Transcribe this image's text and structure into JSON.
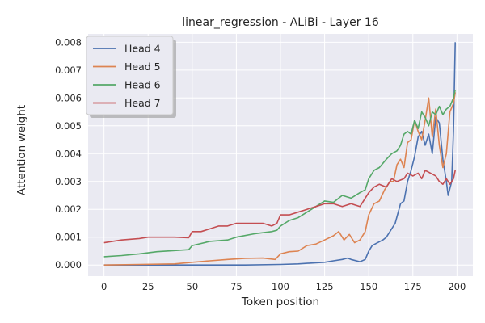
{
  "chart_data": {
    "type": "line",
    "title": "linear_regression - ALiBi - Layer 16",
    "xlabel": "Token position",
    "ylabel": "Attention weight",
    "xlim": [
      -9,
      209
    ],
    "ylim": [
      -0.0004,
      0.0083
    ],
    "xticks": [
      0,
      25,
      50,
      75,
      100,
      125,
      150,
      175,
      200
    ],
    "xtick_labels": [
      "0",
      "25",
      "50",
      "75",
      "100",
      "125",
      "150",
      "175",
      "200"
    ],
    "yticks": [
      0,
      0.001,
      0.002,
      0.003,
      0.004,
      0.005,
      0.006,
      0.007,
      0.008
    ],
    "ytick_labels": [
      "0.000",
      "0.001",
      "0.002",
      "0.003",
      "0.004",
      "0.005",
      "0.006",
      "0.007",
      "0.008"
    ],
    "grid": true,
    "legend_position": "top-left",
    "background": "#eaeaf2",
    "series": [
      {
        "name": "Head 4",
        "color": "#4c72b0",
        "points": [
          [
            0,
            0.0
          ],
          [
            20,
            0.0
          ],
          [
            40,
            0.0
          ],
          [
            60,
            0.0
          ],
          [
            80,
            0.0
          ],
          [
            100,
            2e-05
          ],
          [
            110,
            4e-05
          ],
          [
            120,
            8e-05
          ],
          [
            125,
            0.0001
          ],
          [
            130,
            0.00015
          ],
          [
            135,
            0.0002
          ],
          [
            138,
            0.00025
          ],
          [
            140,
            0.0002
          ],
          [
            145,
            0.00012
          ],
          [
            148,
            0.0002
          ],
          [
            150,
            0.0005
          ],
          [
            152,
            0.0007
          ],
          [
            155,
            0.0008
          ],
          [
            158,
            0.0009
          ],
          [
            160,
            0.001
          ],
          [
            162,
            0.0012
          ],
          [
            165,
            0.0015
          ],
          [
            168,
            0.0022
          ],
          [
            170,
            0.0023
          ],
          [
            172,
            0.003
          ],
          [
            174,
            0.0034
          ],
          [
            176,
            0.0039
          ],
          [
            178,
            0.0046
          ],
          [
            180,
            0.0048
          ],
          [
            182,
            0.0043
          ],
          [
            184,
            0.0047
          ],
          [
            186,
            0.004
          ],
          [
            188,
            0.0053
          ],
          [
            190,
            0.0051
          ],
          [
            192,
            0.0038
          ],
          [
            194,
            0.003
          ],
          [
            195,
            0.0025
          ],
          [
            197,
            0.003
          ],
          [
            198,
            0.0048
          ],
          [
            199,
            0.008
          ]
        ]
      },
      {
        "name": "Head 5",
        "color": "#dd8452",
        "points": [
          [
            0,
            0.0
          ],
          [
            20,
            2e-05
          ],
          [
            40,
            4e-05
          ],
          [
            50,
            0.0001
          ],
          [
            60,
            0.00015
          ],
          [
            70,
            0.0002
          ],
          [
            80,
            0.00024
          ],
          [
            90,
            0.00025
          ],
          [
            97,
            0.0002
          ],
          [
            100,
            0.0004
          ],
          [
            105,
            0.00048
          ],
          [
            110,
            0.0005
          ],
          [
            115,
            0.0007
          ],
          [
            120,
            0.00075
          ],
          [
            125,
            0.0009
          ],
          [
            130,
            0.00105
          ],
          [
            133,
            0.0012
          ],
          [
            136,
            0.0009
          ],
          [
            139,
            0.0011
          ],
          [
            142,
            0.0008
          ],
          [
            145,
            0.0009
          ],
          [
            148,
            0.0012
          ],
          [
            150,
            0.0018
          ],
          [
            153,
            0.0022
          ],
          [
            156,
            0.0023
          ],
          [
            159,
            0.0027
          ],
          [
            162,
            0.003
          ],
          [
            164,
            0.003
          ],
          [
            166,
            0.0036
          ],
          [
            168,
            0.0038
          ],
          [
            170,
            0.0035
          ],
          [
            172,
            0.0044
          ],
          [
            174,
            0.0045
          ],
          [
            176,
            0.0052
          ],
          [
            178,
            0.0048
          ],
          [
            180,
            0.0045
          ],
          [
            182,
            0.0052
          ],
          [
            184,
            0.006
          ],
          [
            186,
            0.0046
          ],
          [
            188,
            0.0056
          ],
          [
            190,
            0.0043
          ],
          [
            192,
            0.0035
          ],
          [
            194,
            0.004
          ],
          [
            196,
            0.0055
          ],
          [
            198,
            0.0058
          ],
          [
            199,
            0.0062
          ]
        ]
      },
      {
        "name": "Head 6",
        "color": "#55a868",
        "points": [
          [
            0,
            0.0003
          ],
          [
            10,
            0.00034
          ],
          [
            20,
            0.0004
          ],
          [
            30,
            0.00048
          ],
          [
            40,
            0.00052
          ],
          [
            48,
            0.00055
          ],
          [
            50,
            0.0007
          ],
          [
            60,
            0.00085
          ],
          [
            70,
            0.0009
          ],
          [
            75,
            0.001
          ],
          [
            85,
            0.00112
          ],
          [
            95,
            0.0012
          ],
          [
            98,
            0.00125
          ],
          [
            100,
            0.0014
          ],
          [
            105,
            0.0016
          ],
          [
            110,
            0.0017
          ],
          [
            115,
            0.0019
          ],
          [
            120,
            0.0021
          ],
          [
            125,
            0.0023
          ],
          [
            130,
            0.00225
          ],
          [
            135,
            0.0025
          ],
          [
            140,
            0.0024
          ],
          [
            145,
            0.0026
          ],
          [
            148,
            0.0027
          ],
          [
            150,
            0.0031
          ],
          [
            153,
            0.0034
          ],
          [
            156,
            0.0035
          ],
          [
            160,
            0.0038
          ],
          [
            163,
            0.004
          ],
          [
            166,
            0.0041
          ],
          [
            168,
            0.0043
          ],
          [
            170,
            0.0047
          ],
          [
            172,
            0.0048
          ],
          [
            174,
            0.0047
          ],
          [
            176,
            0.0052
          ],
          [
            178,
            0.0049
          ],
          [
            180,
            0.0055
          ],
          [
            182,
            0.0053
          ],
          [
            184,
            0.005
          ],
          [
            186,
            0.0055
          ],
          [
            188,
            0.0054
          ],
          [
            190,
            0.0057
          ],
          [
            192,
            0.0054
          ],
          [
            194,
            0.0056
          ],
          [
            196,
            0.0057
          ],
          [
            198,
            0.006
          ],
          [
            199,
            0.0063
          ]
        ]
      },
      {
        "name": "Head 7",
        "color": "#c44e52",
        "points": [
          [
            0,
            0.0008
          ],
          [
            10,
            0.0009
          ],
          [
            20,
            0.00095
          ],
          [
            25,
            0.001
          ],
          [
            30,
            0.001
          ],
          [
            40,
            0.001
          ],
          [
            48,
            0.00098
          ],
          [
            50,
            0.0012
          ],
          [
            55,
            0.0012
          ],
          [
            60,
            0.0013
          ],
          [
            65,
            0.0014
          ],
          [
            70,
            0.0014
          ],
          [
            75,
            0.0015
          ],
          [
            80,
            0.0015
          ],
          [
            85,
            0.0015
          ],
          [
            90,
            0.0015
          ],
          [
            95,
            0.0014
          ],
          [
            98,
            0.0015
          ],
          [
            100,
            0.0018
          ],
          [
            105,
            0.0018
          ],
          [
            110,
            0.0019
          ],
          [
            115,
            0.002
          ],
          [
            120,
            0.0021
          ],
          [
            125,
            0.0022
          ],
          [
            130,
            0.0022
          ],
          [
            135,
            0.0021
          ],
          [
            140,
            0.0022
          ],
          [
            145,
            0.0021
          ],
          [
            150,
            0.0026
          ],
          [
            153,
            0.0028
          ],
          [
            156,
            0.0029
          ],
          [
            160,
            0.0028
          ],
          [
            163,
            0.0031
          ],
          [
            166,
            0.003
          ],
          [
            170,
            0.0031
          ],
          [
            172,
            0.0033
          ],
          [
            175,
            0.0032
          ],
          [
            178,
            0.0033
          ],
          [
            180,
            0.0031
          ],
          [
            182,
            0.0034
          ],
          [
            185,
            0.0033
          ],
          [
            188,
            0.0032
          ],
          [
            190,
            0.003
          ],
          [
            192,
            0.0029
          ],
          [
            194,
            0.0031
          ],
          [
            196,
            0.0029
          ],
          [
            198,
            0.0031
          ],
          [
            199,
            0.0034
          ]
        ]
      }
    ]
  }
}
